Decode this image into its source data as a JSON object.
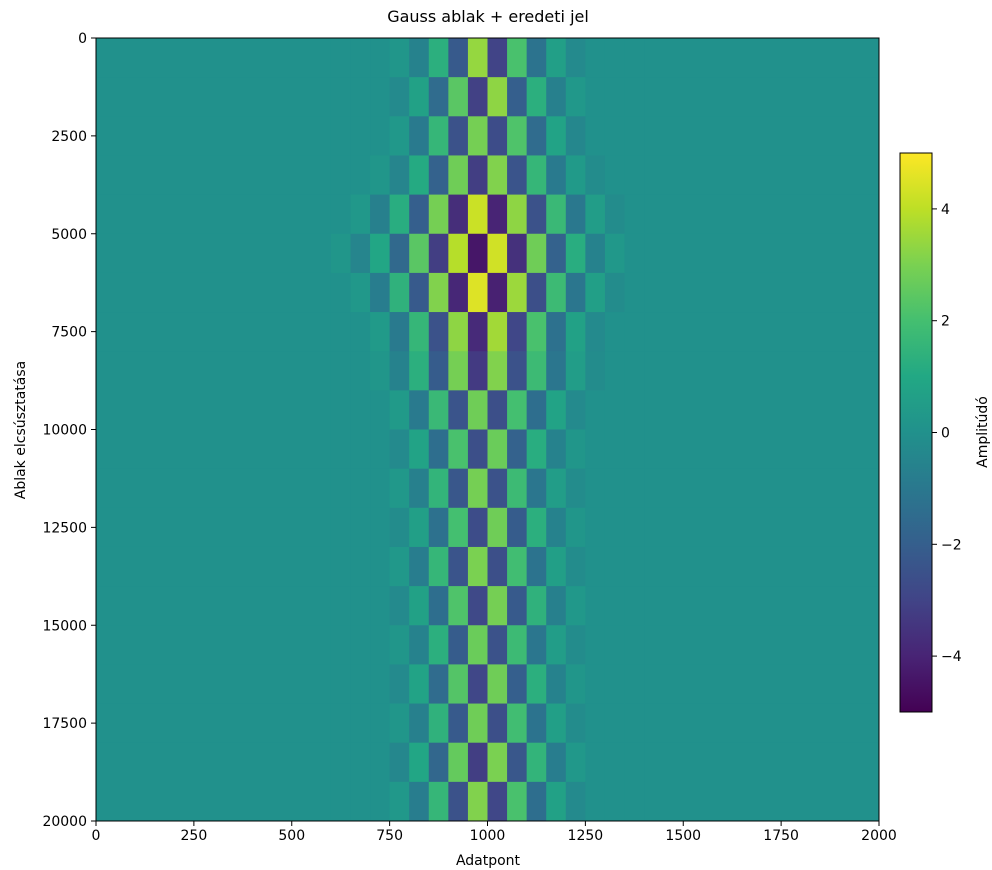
{
  "chart_data": {
    "type": "heatmap",
    "title": "Gauss ablak + eredeti jel",
    "x_label": "Adatpont",
    "y_label": "Ablak elcsúsztatása",
    "colorbar_label": "Amplitúdó",
    "xlim": [
      0,
      2000
    ],
    "ylim": [
      20000,
      0
    ],
    "xticks": [
      0,
      250,
      500,
      750,
      1000,
      1250,
      1500,
      1750,
      2000
    ],
    "yticks": [
      0,
      2500,
      5000,
      7500,
      10000,
      12500,
      15000,
      17500,
      20000
    ],
    "clim": [
      -5,
      5
    ],
    "cticks": [
      {
        "value": -4,
        "label": "−4"
      },
      {
        "value": -2,
        "label": "−2"
      },
      0,
      2,
      4
    ],
    "colormap": "viridis",
    "xbins": [
      0,
      600,
      650,
      700,
      750,
      800,
      850,
      900,
      950,
      1000,
      1050,
      1100,
      1150,
      1200,
      1250,
      1300,
      1350,
      1400,
      2000
    ],
    "ybins": [
      0,
      1000,
      2000,
      3000,
      4000,
      5000,
      6000,
      7000,
      8000,
      9000,
      10000,
      11000,
      12000,
      13000,
      14000,
      15000,
      16000,
      17000,
      18000,
      19000,
      20000
    ],
    "z": [
      [
        0,
        0,
        0,
        0,
        0.2,
        -0.6,
        1.3,
        -2.2,
        3.4,
        -3.0,
        2.1,
        -1.2,
        0.6,
        -0.3,
        0,
        0,
        0,
        0
      ],
      [
        0,
        0,
        0,
        0,
        -0.3,
        0.7,
        -1.5,
        2.4,
        -3.1,
        3.3,
        -2.0,
        1.3,
        -0.7,
        0.3,
        0,
        0,
        0,
        0
      ],
      [
        0,
        0,
        0,
        0,
        0.3,
        -0.9,
        1.6,
        -2.5,
        2.9,
        -2.7,
        2.2,
        -1.5,
        0.8,
        -0.4,
        0,
        0,
        0,
        0
      ],
      [
        0,
        0,
        0,
        0.2,
        -0.5,
        1.1,
        -1.9,
        2.8,
        -3.2,
        3.1,
        -2.4,
        1.6,
        -0.9,
        0.4,
        -0.2,
        0,
        0,
        0
      ],
      [
        0,
        0,
        0.3,
        -0.7,
        1.2,
        -2.0,
        2.9,
        -3.7,
        4.2,
        -4.0,
        3.3,
        -2.5,
        1.7,
        -1.0,
        0.5,
        -0.2,
        0,
        0
      ],
      [
        0,
        0.2,
        -0.5,
        0.9,
        -1.6,
        2.4,
        -3.2,
        3.9,
        -4.4,
        4.3,
        -3.6,
        2.8,
        -1.9,
        1.2,
        -0.6,
        0.3,
        0,
        0
      ],
      [
        0,
        0,
        0.3,
        -0.8,
        1.4,
        -2.2,
        3.1,
        -3.9,
        4.5,
        -4.1,
        3.5,
        -2.6,
        1.8,
        -1.1,
        0.6,
        -0.2,
        0,
        0
      ],
      [
        0,
        0,
        0,
        0.4,
        -0.9,
        1.6,
        -2.5,
        3.3,
        -3.8,
        3.6,
        -2.9,
        2.1,
        -1.3,
        0.7,
        -0.3,
        0,
        0,
        0
      ],
      [
        0,
        0,
        0,
        0.2,
        -0.6,
        1.3,
        -2.1,
        2.9,
        -3.3,
        3.1,
        -2.5,
        1.8,
        -1.1,
        0.5,
        -0.2,
        0,
        0,
        0
      ],
      [
        0,
        0,
        0,
        0,
        0.4,
        -0.9,
        1.7,
        -2.4,
        2.8,
        -2.6,
        2.0,
        -1.4,
        0.8,
        -0.3,
        0,
        0,
        0,
        0
      ],
      [
        0,
        0,
        0,
        0,
        -0.3,
        0.8,
        -1.4,
        2.1,
        -2.6,
        2.7,
        -1.9,
        1.2,
        -0.6,
        0.2,
        0,
        0,
        0,
        0
      ],
      [
        0,
        0,
        0,
        0,
        0.3,
        -0.7,
        1.5,
        -2.3,
        2.9,
        -2.5,
        1.8,
        -1.1,
        0.5,
        -0.2,
        0,
        0,
        0,
        0
      ],
      [
        0,
        0,
        0,
        0,
        -0.2,
        0.6,
        -1.3,
        2.0,
        -2.7,
        2.8,
        -2.1,
        1.3,
        -0.6,
        0.2,
        0,
        0,
        0,
        0
      ],
      [
        0,
        0,
        0,
        0,
        0.3,
        -0.8,
        1.6,
        -2.4,
        3.0,
        -2.6,
        1.9,
        -1.2,
        0.6,
        -0.2,
        0,
        0,
        0,
        0
      ],
      [
        0,
        0,
        0,
        0,
        -0.3,
        0.7,
        -1.4,
        2.2,
        -2.8,
        2.9,
        -2.2,
        1.4,
        -0.7,
        0.3,
        0,
        0,
        0,
        0
      ],
      [
        0,
        0,
        0,
        0,
        0.2,
        -0.6,
        1.3,
        -2.1,
        2.7,
        -2.5,
        1.8,
        -1.1,
        0.5,
        -0.2,
        0,
        0,
        0,
        0
      ],
      [
        0,
        0,
        0,
        0,
        -0.3,
        0.8,
        -1.5,
        2.3,
        -2.9,
        2.8,
        -2.0,
        1.3,
        -0.6,
        0.2,
        0,
        0,
        0,
        0
      ],
      [
        0,
        0,
        0,
        0,
        0.2,
        -0.7,
        1.4,
        -2.2,
        2.8,
        -2.6,
        1.9,
        -1.2,
        0.6,
        -0.2,
        0,
        0,
        0,
        0
      ],
      [
        0,
        0,
        0,
        0,
        -0.4,
        0.9,
        -1.7,
        2.6,
        -3.2,
        3.0,
        -2.3,
        1.5,
        -0.8,
        0.3,
        0,
        0,
        0,
        0
      ],
      [
        0,
        0,
        0,
        0,
        0.3,
        -0.8,
        1.6,
        -2.5,
        3.1,
        -2.9,
        2.1,
        -1.4,
        0.7,
        -0.3,
        0,
        0,
        0,
        0
      ]
    ]
  }
}
